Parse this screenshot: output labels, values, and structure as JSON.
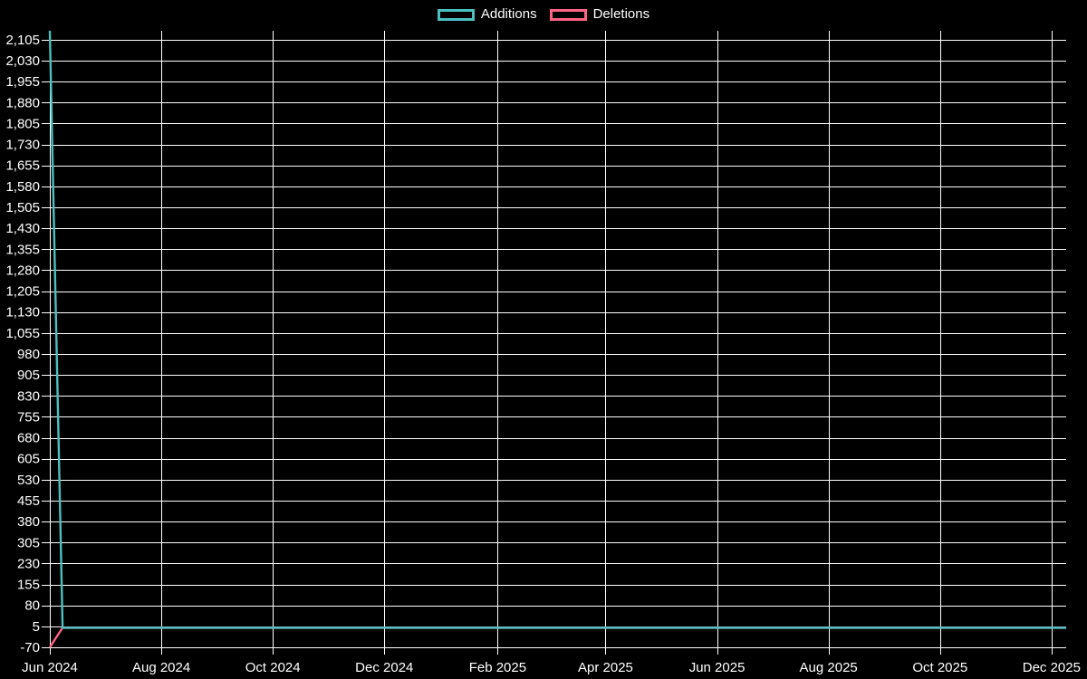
{
  "page": {
    "background_color": "#000000",
    "text_color": "#ffffff"
  },
  "legend": {
    "position": "top",
    "items": [
      {
        "label": "Additions",
        "color": "#4bc0c0"
      },
      {
        "label": "Deletions",
        "color": "#ff6384"
      }
    ]
  },
  "chart_data": {
    "type": "line",
    "title": "",
    "xlabel": "",
    "ylabel": "",
    "grid": "on",
    "grid_color": "#ffffff",
    "legend_position": "top",
    "x_axis": {
      "tick_labels": [
        "Jun 2024",
        "Aug 2024",
        "Oct 2024",
        "Dec 2024",
        "Feb 2025",
        "Apr 2025",
        "Jun 2025",
        "Aug 2025",
        "Oct 2025",
        "Dec 2025"
      ],
      "tick_day_offsets": [
        0,
        61,
        122,
        183,
        245,
        304,
        365,
        426,
        487,
        548
      ],
      "domain_days": [
        0,
        556
      ]
    },
    "y_axis": {
      "tick_min": -70,
      "tick_step": 75,
      "tick_labels": [
        "-70",
        "5",
        "80",
        "155",
        "230",
        "305",
        "380",
        "455",
        "530",
        "605",
        "680",
        "755",
        "830",
        "905",
        "980",
        "1,055",
        "1,130",
        "1,205",
        "1,280",
        "1,355",
        "1,430",
        "1,505",
        "1,580",
        "1,655",
        "1,730",
        "1,805",
        "1,880",
        "1,955",
        "2,030",
        "2,105"
      ],
      "range": [
        -70,
        2137
      ]
    },
    "series": [
      {
        "name": "Additions",
        "color": "#4bc0c0",
        "points_day_value": [
          [
            0,
            2137
          ],
          [
            7,
            0
          ],
          [
            556,
            0
          ]
        ]
      },
      {
        "name": "Deletions",
        "color": "#ff6384",
        "points_day_value": [
          [
            0,
            -70
          ],
          [
            7,
            0
          ],
          [
            556,
            0
          ]
        ]
      }
    ]
  }
}
